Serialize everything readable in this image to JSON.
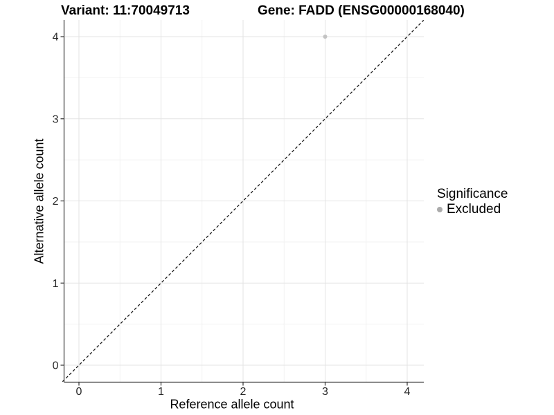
{
  "page": {
    "background": "#ffffff"
  },
  "header": {
    "title_left": "Variant: 11:70049713",
    "title_right": "Gene: FADD (ENSG00000168040)"
  },
  "chart_data": {
    "type": "scatter",
    "titles": [
      "Variant: 11:70049713",
      "Gene: FADD (ENSG00000168040)"
    ],
    "xlabel": "Reference allele count",
    "ylabel": "Alternative allele count",
    "xlim": [
      -0.2,
      4.2
    ],
    "ylim": [
      -0.2,
      4.2
    ],
    "x_ticks": [
      0,
      1,
      2,
      3,
      4
    ],
    "y_ticks": [
      0,
      1,
      2,
      3,
      4
    ],
    "grid": {
      "major": true,
      "minor": true
    },
    "points": [
      {
        "x": 3,
        "y": 4,
        "series": "Excluded"
      }
    ],
    "reference_line": {
      "type": "identity",
      "slope": 1,
      "intercept": 0,
      "style": "dashed"
    },
    "legend": {
      "position": "right",
      "title": "Significance",
      "items": [
        {
          "label": "Excluded",
          "color": "#ababab"
        }
      ]
    },
    "colors": {
      "point": "#c3c3c3",
      "grid_major": "#e3e3e3",
      "grid_minor": "#f2f2f2",
      "axis_line": "#333333",
      "tick_mark": "#333333",
      "tick_label": "#262626",
      "reference_line": "#1a1a1a",
      "title_text": "#000000"
    }
  }
}
